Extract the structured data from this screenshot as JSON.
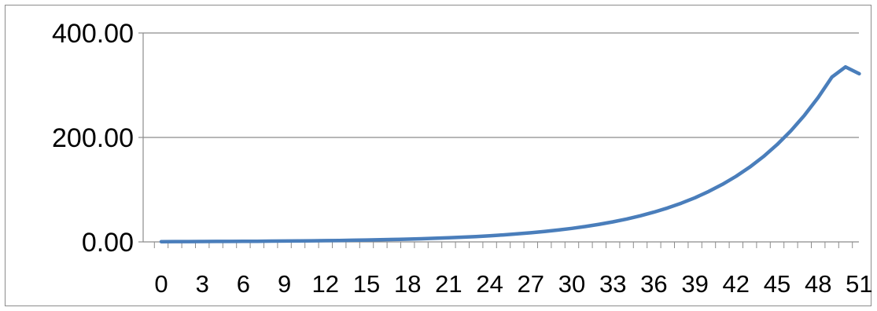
{
  "chart_data": {
    "type": "line",
    "title": "",
    "xlabel": "",
    "ylabel": "",
    "x": [
      0,
      1,
      2,
      3,
      4,
      5,
      6,
      7,
      8,
      9,
      10,
      11,
      12,
      13,
      14,
      15,
      16,
      17,
      18,
      19,
      20,
      21,
      22,
      23,
      24,
      25,
      26,
      27,
      28,
      29,
      30,
      31,
      32,
      33,
      34,
      35,
      36,
      37,
      38,
      39,
      40,
      41,
      42,
      43,
      44,
      45,
      46,
      47,
      48,
      49,
      50,
      51
    ],
    "x_tick_labels": [
      "0",
      "3",
      "6",
      "9",
      "12",
      "15",
      "18",
      "21",
      "24",
      "27",
      "30",
      "33",
      "36",
      "39",
      "42",
      "45",
      "48",
      "51"
    ],
    "y_tick_labels": [
      "0.00",
      "200.00",
      "400.00"
    ],
    "ylim": [
      0,
      400
    ],
    "grid": true,
    "legend": "none",
    "series": [
      {
        "color": "#4a7ebb",
        "values": [
          0.5,
          0.57,
          0.65,
          0.74,
          0.84,
          0.96,
          1.1,
          1.25,
          1.43,
          1.63,
          1.86,
          2.12,
          2.42,
          2.76,
          3.15,
          3.59,
          4.1,
          4.67,
          5.33,
          6.08,
          6.94,
          7.91,
          9.03,
          10.3,
          11.74,
          13.4,
          15.28,
          17.43,
          19.88,
          22.68,
          25.87,
          29.51,
          33.66,
          38.39,
          43.8,
          49.96,
          56.99,
          65.0,
          74.15,
          84.58,
          96.48,
          110.05,
          125.53,
          143.19,
          163.33,
          186.31,
          212.52,
          242.42,
          276.52,
          315.42,
          335.0,
          322.0
        ]
      }
    ]
  }
}
